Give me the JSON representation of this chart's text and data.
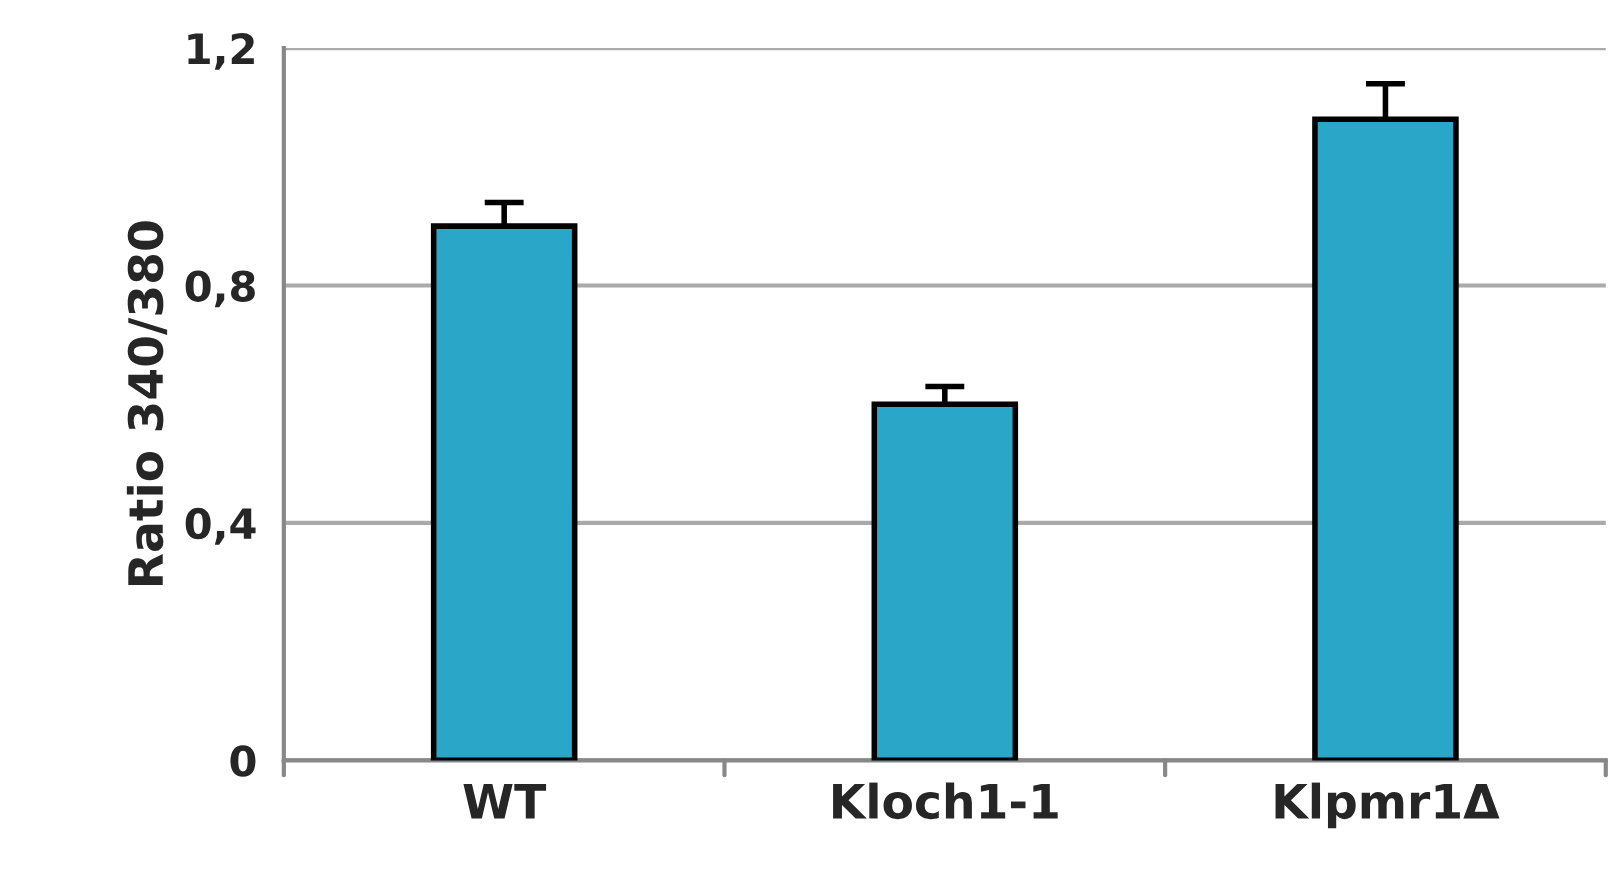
{
  "chart_data": {
    "type": "bar",
    "ylabel": "Ratio 340/380",
    "categories": [
      "WT",
      "Kloch1-1",
      "Klpmr1Δ"
    ],
    "values": [
      0.9,
      0.6,
      1.08
    ],
    "errors": [
      0.04,
      0.03,
      0.06
    ],
    "color": "#2aa6c8",
    "ylim": [
      0,
      1.2
    ],
    "yticks": [
      {
        "value": 0,
        "label": "0"
      },
      {
        "value": 0.4,
        "label": "0,4"
      },
      {
        "value": 0.8,
        "label": "0,8"
      },
      {
        "value": 1.2,
        "label": "1,2"
      }
    ],
    "grid": "y",
    "legend": false
  }
}
